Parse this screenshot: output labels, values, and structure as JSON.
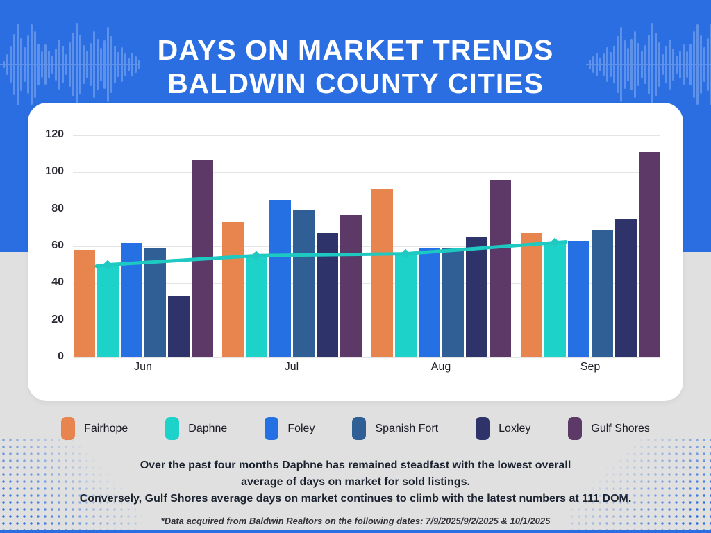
{
  "header": {
    "title_line1": "DAYS ON MARKET TRENDS",
    "title_line2": "BALDWIN COUNTY CITIES"
  },
  "chart_data": {
    "type": "bar",
    "title": "Days on Market Trends - Baldwin County Cities",
    "categories": [
      "Jun",
      "Jul",
      "Aug",
      "Sep"
    ],
    "series": [
      {
        "name": "Fairhope",
        "color": "#E8854E",
        "values": [
          58,
          73,
          91,
          67
        ]
      },
      {
        "name": "Daphne",
        "color": "#1DD3C9",
        "values": [
          50,
          55,
          56,
          62
        ]
      },
      {
        "name": "Foley",
        "color": "#2571E4",
        "values": [
          62,
          85,
          59,
          63
        ]
      },
      {
        "name": "Spanish Fort",
        "color": "#305F95",
        "values": [
          59,
          80,
          59,
          69
        ]
      },
      {
        "name": "Loxley",
        "color": "#2E336A",
        "values": [
          33,
          67,
          65,
          75
        ]
      },
      {
        "name": "Gulf Shores",
        "color": "#5C3966",
        "values": [
          107,
          77,
          96,
          111
        ]
      }
    ],
    "line_overlay": {
      "name": "Daphne trend",
      "color": "#1EC9C2",
      "values": [
        50,
        55,
        56,
        62
      ],
      "marker": "diamond"
    },
    "ylim": [
      0,
      120
    ],
    "yticks": [
      0,
      20,
      40,
      60,
      80,
      100,
      120
    ],
    "xlabel": "",
    "ylabel": "",
    "grid": true,
    "legend_position": "bottom"
  },
  "notes": {
    "line1": "Over the past four months Daphne has remained steadfast with the lowest overall",
    "line2": "average of days on market for sold listings.",
    "line3": "Conversely, Gulf Shores average days on market continues to climb with the latest numbers at 111 DOM.",
    "footnote": "*Data acquired from Baldwin Realtors on the following dates: 7/9/2025/9/2/2025 & 10/1/2025"
  },
  "colors": {
    "header_bg": "#2A6EE1",
    "waveform": "#5E91EA",
    "page_bg": "#E0E0E0",
    "card_bg": "#FFFFFF",
    "gridline": "#E4E4E7",
    "axis_text": "#2B2B33",
    "dots": "#2A6EE1"
  }
}
